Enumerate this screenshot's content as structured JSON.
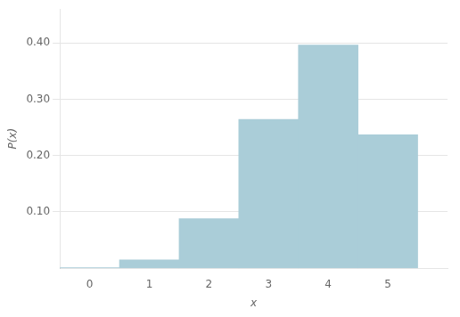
{
  "chart_data": {
    "type": "bar",
    "x": [
      0,
      1,
      2,
      3,
      4,
      5
    ],
    "values": [
      0.001,
      0.015,
      0.088,
      0.264,
      0.396,
      0.237
    ],
    "color": "#aacdd8",
    "xlabel": "x",
    "ylabel": "P(x)",
    "xlim": [
      -0.5,
      6.0
    ],
    "ylim": [
      0,
      0.46
    ],
    "xticks": [
      0,
      1,
      2,
      3,
      4,
      5
    ],
    "yticks": [
      {
        "value": 0.1,
        "label": "0.10"
      },
      {
        "value": 0.2,
        "label": "0.20"
      },
      {
        "value": 0.3,
        "label": "0.30"
      },
      {
        "value": 0.4,
        "label": "0.40"
      }
    ],
    "grid": true
  }
}
